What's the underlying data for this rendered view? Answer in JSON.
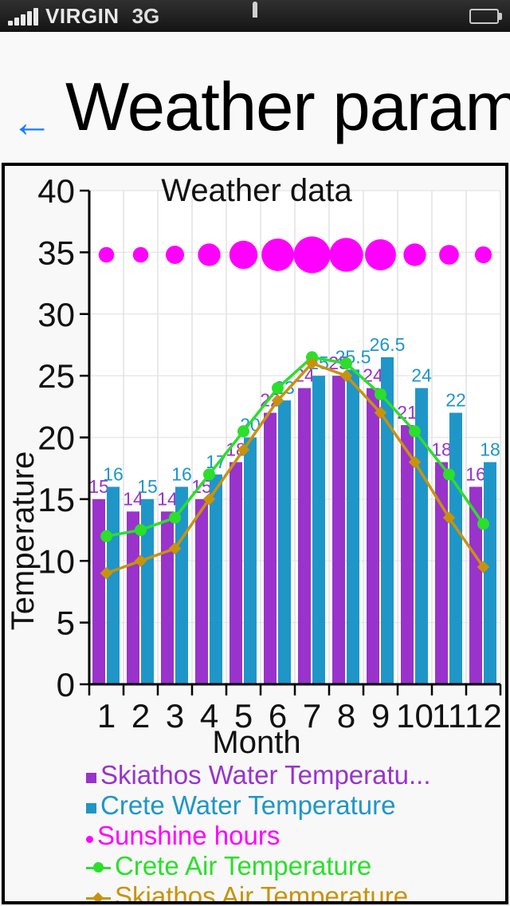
{
  "status_bar": {
    "carrier": "VIRGIN",
    "network": "3G",
    "battery_level": "full",
    "icons": [
      "signal-strength-icon",
      "lock-icon",
      "battery-icon"
    ]
  },
  "header": {
    "back_glyph": "←",
    "title": "Weather param"
  },
  "chart_data": {
    "type": "combo",
    "title": "Weather data",
    "xlabel": "Month",
    "ylabel": "Temperature",
    "x": [
      1,
      2,
      3,
      4,
      5,
      6,
      7,
      8,
      9,
      10,
      11,
      12
    ],
    "xticks": [
      "1",
      "2",
      "3",
      "4",
      "5",
      "6",
      "7",
      "8",
      "9",
      "10",
      "11",
      "12"
    ],
    "ylim": [
      0,
      40
    ],
    "yticks": [
      0,
      5,
      10,
      15,
      20,
      25,
      30,
      35,
      40
    ],
    "grid": true,
    "legend_position": "bottom",
    "series": [
      {
        "name": "Skiathos Water Temperature",
        "type": "bar",
        "color": "#9933cc",
        "labels_shown": true,
        "values": [
          15,
          14,
          14,
          15,
          18,
          22,
          24,
          25,
          24,
          21,
          18,
          16
        ]
      },
      {
        "name": "Crete Water Temperature",
        "type": "bar",
        "color": "#1f96c8",
        "labels_shown": true,
        "values": [
          16,
          15,
          16,
          17,
          20,
          23,
          25,
          25.5,
          26.5,
          24,
          22,
          18
        ]
      },
      {
        "name": "Sunshine hours",
        "type": "bubble",
        "color": "#ff00ff",
        "row_y": 34.8,
        "values_estimated": true,
        "values": [
          5.5,
          5.5,
          6.5,
          8,
          10,
          11.5,
          13,
          12,
          11,
          8,
          7,
          6
        ]
      },
      {
        "name": "Crete Air Temperature",
        "type": "line",
        "marker": "circle",
        "color": "#2bdf2b",
        "values": [
          12,
          12.5,
          13.5,
          17,
          20.5,
          24,
          26.5,
          26,
          23.5,
          20.5,
          17,
          13
        ]
      },
      {
        "name": "Skiathos Air Temperature",
        "type": "line",
        "marker": "diamond",
        "color": "#c8930b",
        "values": [
          9,
          10,
          11,
          15,
          19,
          23,
          26,
          25,
          22,
          18,
          13.5,
          9.5
        ]
      }
    ]
  },
  "legend": {
    "items": [
      {
        "label": "Skiathos Water Temperatu...",
        "color": "#9933cc",
        "marker": "square"
      },
      {
        "label": "Crete Water Temperature",
        "color": "#1f96c8",
        "marker": "square"
      },
      {
        "label": "Sunshine hours",
        "color": "#ff00ff",
        "marker": "dot"
      },
      {
        "label": "Crete Air Temperature",
        "color": "#2bdf2b",
        "marker": "line-circle"
      },
      {
        "label": "Skiathos Air Temperature",
        "color": "#c8930b",
        "marker": "line-diamond"
      }
    ]
  }
}
